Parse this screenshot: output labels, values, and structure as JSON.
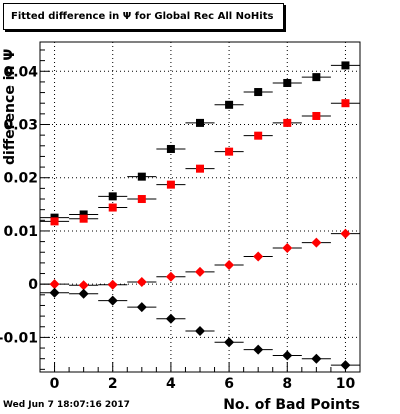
{
  "title": "Fitted difference in  Ψ  for Global Rec All NoHits",
  "timestamp": "Wed Jun  7 18:07:16 2017",
  "chart_data": {
    "type": "scatter",
    "title": "Fitted difference in  Ψ  for Global Rec All NoHits",
    "xlabel": "No. of Bad Points",
    "ylabel": "difference in Ψ",
    "xlim": [
      -0.5,
      10.5
    ],
    "ylim": [
      -0.0165,
      0.0455
    ],
    "x_ticks": [
      0,
      2,
      4,
      6,
      8,
      10
    ],
    "y_ticks": [
      -0.01,
      0,
      0.01,
      0.02,
      0.03,
      0.04
    ],
    "y_tick_labels": [
      "-0.01",
      "0",
      "0.01",
      "0.02",
      "0.03",
      "0.04"
    ],
    "grid": true,
    "x": [
      0,
      1,
      2,
      3,
      4,
      5,
      6,
      7,
      8,
      9,
      10
    ],
    "series": [
      {
        "marker": "square",
        "color": "#000000",
        "values": [
          0.0125,
          0.0131,
          0.0165,
          0.0202,
          0.0254,
          0.0303,
          0.0337,
          0.0361,
          0.0378,
          0.0389,
          0.0411
        ]
      },
      {
        "marker": "square",
        "color": "#ff0000",
        "values": [
          0.0118,
          0.0123,
          0.0144,
          0.016,
          0.0187,
          0.0217,
          0.0249,
          0.0279,
          0.0303,
          0.0316,
          0.034
        ]
      },
      {
        "marker": "diamond",
        "color": "#ff0000",
        "values": [
          0.0,
          -0.0002,
          -0.0001,
          0.0004,
          0.0014,
          0.0023,
          0.0036,
          0.0052,
          0.0068,
          0.0078,
          0.0095
        ]
      },
      {
        "marker": "diamond",
        "color": "#000000",
        "values": [
          -0.0016,
          -0.0018,
          -0.0031,
          -0.0043,
          -0.0065,
          -0.0088,
          -0.0109,
          -0.0123,
          -0.0134,
          -0.014,
          -0.0152
        ]
      }
    ]
  }
}
